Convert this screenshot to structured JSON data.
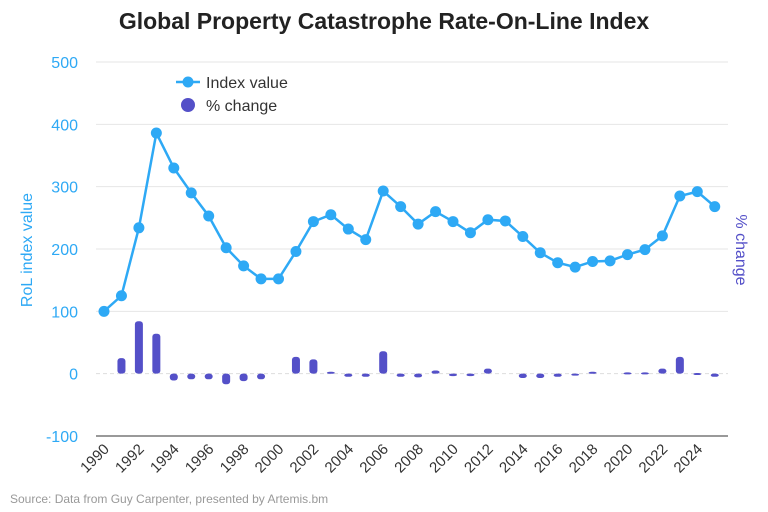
{
  "chart_data": {
    "type": "line+bar",
    "title": "Global Property Catastrophe Rate-On-Line Index",
    "source": "Source: Data from Guy Carpenter, presented by Artemis.bm",
    "ylabel": "RoL index value",
    "y2label": "% change",
    "ylim": [
      -100,
      500
    ],
    "yticks": [
      "500",
      "400",
      "300",
      "200",
      "100",
      "0",
      "-100"
    ],
    "xticks": [
      "1990",
      "1992",
      "1994",
      "1996",
      "1998",
      "2000",
      "2002",
      "2004",
      "2006",
      "2008",
      "2010",
      "2012",
      "2014",
      "2016",
      "2018",
      "2020",
      "2022",
      "2024"
    ],
    "grid": true,
    "legend": "top-left",
    "x": [
      1990,
      1991,
      1992,
      1993,
      1994,
      1995,
      1996,
      1997,
      1998,
      1999,
      2000,
      2001,
      2002,
      2003,
      2004,
      2005,
      2006,
      2007,
      2008,
      2009,
      2010,
      2011,
      2012,
      2013,
      2014,
      2015,
      2016,
      2017,
      2018,
      2019,
      2020,
      2021,
      2022,
      2023,
      2024,
      2025
    ],
    "series": [
      {
        "name": "Index value",
        "kind": "line",
        "color": "#2ea9f5",
        "values": [
          100,
          125,
          234,
          386,
          330,
          290,
          253,
          202,
          173,
          152,
          152,
          196,
          244,
          255,
          232,
          215,
          293,
          268,
          240,
          260,
          244,
          226,
          247,
          245,
          220,
          194,
          178,
          171,
          180,
          181,
          191,
          199,
          221,
          285,
          292,
          268
        ]
      },
      {
        "name": "% change",
        "kind": "bar",
        "color": "#5450c8",
        "values": [
          null,
          25,
          84,
          64,
          -11,
          -9,
          -9,
          -17,
          -12,
          -9,
          0,
          27,
          23,
          3,
          -5,
          -5,
          36,
          -5,
          -6,
          5,
          -4,
          -4,
          8,
          0,
          -7,
          -7,
          -5,
          -3,
          3,
          0,
          2,
          2,
          8,
          27,
          1,
          -5
        ]
      }
    ]
  }
}
